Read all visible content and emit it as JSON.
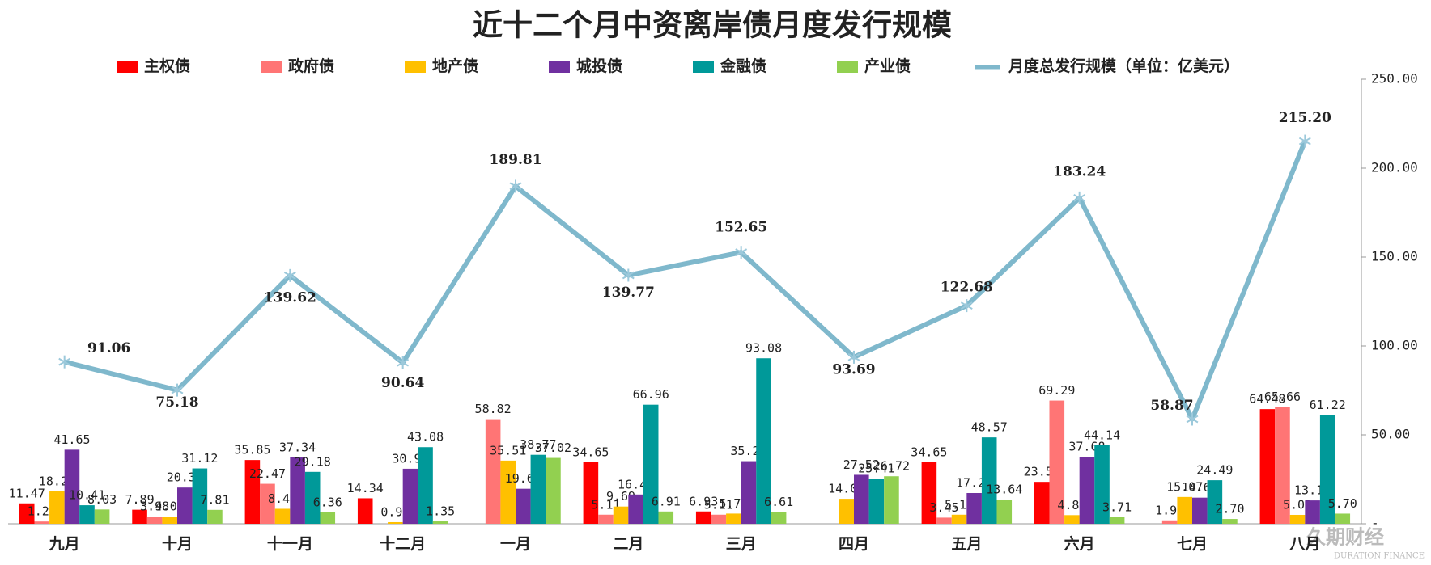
{
  "chart_data": {
    "type": "bar",
    "title": "近十二个月中资离岸债月度发行规模",
    "categories": [
      "九月",
      "十月",
      "十一月",
      "十二月",
      "一月",
      "二月",
      "三月",
      "四月",
      "五月",
      "六月",
      "七月",
      "八月"
    ],
    "series": [
      {
        "name": "主权债",
        "color": "#ff0000",
        "values": [
          11.47,
          7.89,
          35.85,
          14.34,
          null,
          34.65,
          6.93,
          null,
          34.65,
          23.56,
          null,
          64.48
        ],
        "value_labels": [
          "11.47",
          "7.89",
          "35.85",
          "14.34",
          null,
          "34.65",
          "6.93",
          null,
          "34.65",
          "23.56",
          null,
          "64.48"
        ]
      },
      {
        "name": "政府债",
        "color": "#ff7575",
        "values": [
          1.28,
          3.98,
          22.47,
          null,
          58.82,
          5.11,
          5.11,
          null,
          3.45,
          69.29,
          1.92,
          65.66
        ],
        "value_labels": [
          "1.28",
          "3.98",
          "22.47",
          null,
          "58.82",
          "5.11",
          "5.11",
          null,
          "3.45",
          "69.29",
          "1.92",
          "65.66"
        ]
      },
      {
        "name": "地产债",
        "color": "#ffc000",
        "values": [
          18.22,
          4.01,
          8.42,
          0.92,
          35.51,
          9.69,
          5.72,
          14.04,
          5.1,
          4.86,
          15.07,
          5.01
        ],
        "value_labels": [
          "18.22",
          "4.01",
          "8.42",
          "0.92",
          "35.51",
          "9.69",
          "5.72",
          "14.04",
          "5.10",
          "4.86",
          "15.07",
          "5.01"
        ]
      },
      {
        "name": "城投债",
        "color": "#7030a0",
        "values": [
          41.65,
          20.37,
          37.34,
          30.95,
          19.69,
          16.45,
          35.2,
          27.52,
          17.27,
          37.68,
          14.69,
          13.13
        ],
        "value_labels": [
          "41.65",
          "20.37",
          "37.34",
          "30.95",
          "19.69",
          "16.45",
          "35.20",
          "27.52",
          "17.27",
          "37.68",
          "14.69",
          "13.13"
        ]
      },
      {
        "name": "金融债",
        "color": "#009999",
        "values": [
          10.41,
          31.12,
          29.18,
          43.08,
          38.77,
          66.96,
          93.08,
          25.41,
          48.57,
          44.14,
          24.49,
          61.22
        ],
        "value_labels": [
          "10.41",
          "31.12",
          "29.18",
          "43.08",
          "38.77",
          "66.96",
          "93.08",
          "25.41",
          "48.57",
          "44.14",
          "24.49",
          "61.22"
        ]
      },
      {
        "name": "产业债",
        "color": "#92d050",
        "values": [
          8.03,
          7.81,
          6.36,
          1.35,
          37.02,
          6.91,
          6.61,
          26.72,
          13.64,
          3.71,
          2.7,
          5.7
        ],
        "value_labels": [
          "8.03",
          "7.81",
          "6.36",
          "1.35",
          "37.02",
          "6.91",
          "6.61",
          "26.72",
          "13.64",
          "3.71",
          "2.70",
          "5.70"
        ]
      },
      {
        "name": "月度总发行规模（单位：亿美元）",
        "type": "line",
        "color": "#7fb8cc",
        "values": [
          91.06,
          75.18,
          139.62,
          90.64,
          189.81,
          139.77,
          152.65,
          93.69,
          122.68,
          183.24,
          58.87,
          215.2
        ],
        "value_labels": [
          "91.06",
          "75.18",
          "139.62",
          "90.64",
          "189.81",
          "139.77",
          "152.65",
          "93.69",
          "122.68",
          "183.24",
          "58.87",
          "215.20"
        ]
      }
    ],
    "ylim": [
      0,
      250
    ],
    "yticks": [
      {
        "value": 0,
        "label": "-"
      },
      {
        "value": 50,
        "label": "50.00"
      },
      {
        "value": 100,
        "label": "100.00"
      },
      {
        "value": 150,
        "label": "150.00"
      },
      {
        "value": 200,
        "label": "200.00"
      },
      {
        "value": 250,
        "label": "250.00"
      }
    ],
    "axis_side": "right",
    "legend": "top"
  },
  "watermark": {
    "name": "久期财经",
    "subtitle": "DURATION FINANCE"
  }
}
